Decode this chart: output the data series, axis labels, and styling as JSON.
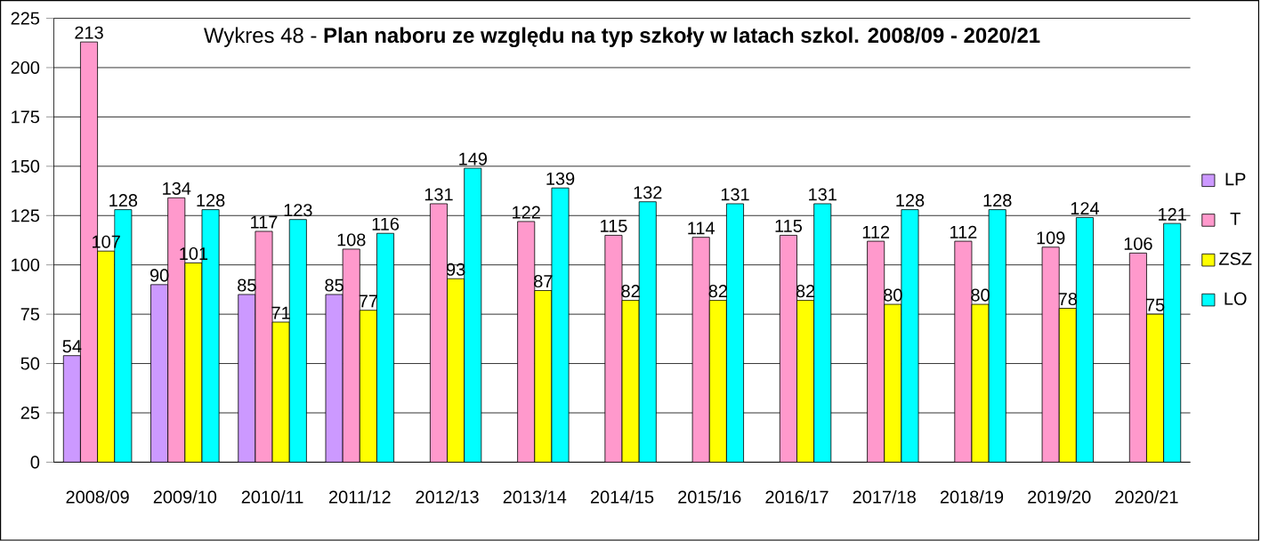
{
  "chart_data": {
    "type": "bar",
    "title": "Wykres 48 - **Plan naboru ze względu na typ szkoły w latach szkol. 2008/09 - 2020/21**",
    "categories": [
      "2008/09",
      "2009/10",
      "2010/11",
      "2011/12",
      "2012/13",
      "2013/14",
      "2014/15",
      "2015/16",
      "2016/17",
      "2017/18",
      "2018/19",
      "2019/20",
      "2020/21"
    ],
    "series": [
      {
        "name": "LP",
        "color": "#cc99ff",
        "values": [
          54,
          90,
          85,
          85,
          null,
          null,
          null,
          null,
          null,
          null,
          null,
          null,
          null
        ]
      },
      {
        "name": "T",
        "color": "#ff99cc",
        "values": [
          213,
          134,
          117,
          108,
          131,
          122,
          115,
          114,
          115,
          112,
          112,
          109,
          106
        ]
      },
      {
        "name": "ZSZ",
        "color": "#ffff00",
        "values": [
          107,
          101,
          71,
          77,
          93,
          87,
          82,
          82,
          82,
          80,
          80,
          78,
          75
        ]
      },
      {
        "name": "LO",
        "color": "#00ffff",
        "values": [
          128,
          128,
          123,
          116,
          149,
          139,
          132,
          131,
          131,
          128,
          128,
          124,
          121
        ]
      }
    ],
    "ylim": [
      0,
      225
    ],
    "yticks": [
      0,
      25,
      50,
      75,
      100,
      125,
      150,
      175,
      200,
      225
    ],
    "grid": "y",
    "legend": "right",
    "data_labels": true
  }
}
